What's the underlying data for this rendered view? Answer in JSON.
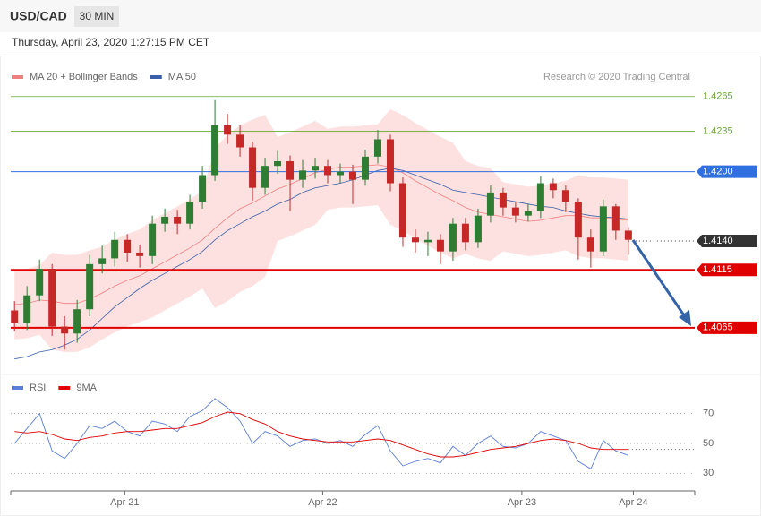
{
  "header": {
    "symbol": "USD/CAD",
    "timeframe": "30 MIN",
    "datetime": "Thursday, April 23, 2020 1:27:15 PM CET"
  },
  "chart_data": [
    {
      "type": "candlestick",
      "source": "Research © 2020 Trading Central",
      "up_color": "#2e7d32",
      "down_color": "#c62828",
      "ylim": [
        1.403,
        1.4271
      ],
      "open": [
        1.408,
        1.4069,
        1.4093,
        1.4116,
        1.4066,
        1.406,
        1.4081,
        1.412,
        1.4125,
        1.4141,
        1.413,
        1.4127,
        1.4155,
        1.4161,
        1.4155,
        1.4174,
        1.4197,
        1.424,
        1.4232,
        1.4221,
        1.4186,
        1.4205,
        1.4209,
        1.4193,
        1.4201,
        1.4205,
        1.4197,
        1.42,
        1.4193,
        1.4213,
        1.4228,
        1.419,
        1.4143,
        1.4139,
        1.4141,
        1.4131,
        1.4155,
        1.4139,
        1.4162,
        1.4182,
        1.4169,
        1.4162,
        1.4166,
        1.419,
        1.4184,
        1.4174,
        1.4143,
        1.4131,
        1.417,
        1.4149
      ],
      "high": [
        1.4088,
        1.4101,
        1.4124,
        1.412,
        1.4075,
        1.4089,
        1.4128,
        1.4136,
        1.4148,
        1.4146,
        1.4137,
        1.4162,
        1.4168,
        1.4167,
        1.418,
        1.4205,
        1.4262,
        1.425,
        1.424,
        1.4226,
        1.4212,
        1.4218,
        1.4214,
        1.421,
        1.4212,
        1.421,
        1.4207,
        1.4206,
        1.4219,
        1.4236,
        1.4232,
        1.4195,
        1.415,
        1.4148,
        1.4146,
        1.416,
        1.416,
        1.4168,
        1.4188,
        1.4186,
        1.4174,
        1.4172,
        1.4196,
        1.4194,
        1.4188,
        1.4177,
        1.415,
        1.4176,
        1.4172,
        1.4152
      ],
      "low": [
        1.4062,
        1.4063,
        1.4088,
        1.4058,
        1.4046,
        1.4052,
        1.4075,
        1.4112,
        1.4118,
        1.4122,
        1.4117,
        1.412,
        1.4148,
        1.4146,
        1.415,
        1.4168,
        1.4192,
        1.4224,
        1.4213,
        1.4175,
        1.418,
        1.4198,
        1.4166,
        1.4186,
        1.4194,
        1.419,
        1.419,
        1.4172,
        1.4188,
        1.4207,
        1.4183,
        1.4135,
        1.413,
        1.4127,
        1.412,
        1.4123,
        1.4132,
        1.4134,
        1.4156,
        1.4162,
        1.4156,
        1.4157,
        1.416,
        1.4177,
        1.4165,
        1.4124,
        1.4117,
        1.4127,
        1.4141,
        1.4128
      ],
      "close": [
        1.4069,
        1.4093,
        1.4116,
        1.4066,
        1.406,
        1.4081,
        1.412,
        1.4125,
        1.4141,
        1.413,
        1.4127,
        1.4155,
        1.4161,
        1.4155,
        1.4174,
        1.4197,
        1.424,
        1.4232,
        1.4221,
        1.4186,
        1.4205,
        1.4209,
        1.4193,
        1.4201,
        1.4205,
        1.4197,
        1.42,
        1.4193,
        1.4213,
        1.4228,
        1.419,
        1.4143,
        1.4139,
        1.4141,
        1.4131,
        1.4155,
        1.4139,
        1.4162,
        1.4182,
        1.4169,
        1.4162,
        1.4166,
        1.419,
        1.4184,
        1.4174,
        1.4143,
        1.4131,
        1.417,
        1.4149,
        1.4141
      ],
      "series": [
        {
          "name": "MA 20 + Bollinger Bands",
          "color": "#f08080",
          "values": [
            1.4085,
            1.4086,
            1.4089,
            1.4088,
            1.4086,
            1.4086,
            1.409,
            1.4095,
            1.4101,
            1.4106,
            1.411,
            1.4116,
            1.4122,
            1.4128,
            1.4134,
            1.4141,
            1.4151,
            1.416,
            1.4168,
            1.4173,
            1.4179,
            1.4185,
            1.4189,
            1.4194,
            1.4199,
            1.4202,
            1.4204,
            1.4204,
            1.4205,
            1.4206,
            1.4204,
            1.4199,
            1.4192,
            1.4186,
            1.418,
            1.4175,
            1.4169,
            1.4165,
            1.4163,
            1.4161,
            1.4159,
            1.4157,
            1.4158,
            1.416,
            1.4162,
            1.4162,
            1.416,
            1.416,
            1.4159,
            1.4158
          ],
          "upper": [
            1.4115,
            1.4116,
            1.4119,
            1.413,
            1.4128,
            1.4128,
            1.4132,
            1.4135,
            1.4141,
            1.4146,
            1.415,
            1.4158,
            1.4164,
            1.417,
            1.4176,
            1.4183,
            1.422,
            1.4232,
            1.424,
            1.4245,
            1.4249,
            1.423,
            1.4234,
            1.4239,
            1.4244,
            1.4237,
            1.4239,
            1.4239,
            1.424,
            1.4241,
            1.4254,
            1.4249,
            1.4242,
            1.4236,
            1.423,
            1.4225,
            1.4209,
            1.4205,
            1.4203,
            1.4191,
            1.4189,
            1.4187,
            1.4188,
            1.419,
            1.4192,
            1.4197,
            1.4195,
            1.4195,
            1.4194,
            1.4193
          ],
          "lower": [
            1.4055,
            1.4056,
            1.4059,
            1.4046,
            1.4044,
            1.4044,
            1.4048,
            1.4055,
            1.4061,
            1.4066,
            1.407,
            1.4074,
            1.408,
            1.4086,
            1.4092,
            1.4099,
            1.4082,
            1.4088,
            1.4096,
            1.4101,
            1.4109,
            1.414,
            1.4144,
            1.4149,
            1.4154,
            1.4167,
            1.4169,
            1.4169,
            1.417,
            1.4171,
            1.4154,
            1.4149,
            1.4142,
            1.4136,
            1.413,
            1.4125,
            1.4129,
            1.4125,
            1.4123,
            1.4131,
            1.4129,
            1.4127,
            1.4128,
            1.413,
            1.4132,
            1.4127,
            1.4125,
            1.4125,
            1.4124,
            1.4123
          ]
        },
        {
          "name": "MA 50",
          "color": "#3a5fa8",
          "values": [
            1.4038,
            1.404,
            1.4044,
            1.4046,
            1.405,
            1.4055,
            1.4063,
            1.4073,
            1.4083,
            1.4091,
            1.4099,
            1.4106,
            1.4112,
            1.4118,
            1.4124,
            1.4131,
            1.4141,
            1.4149,
            1.4155,
            1.4161,
            1.4166,
            1.4172,
            1.4176,
            1.4182,
            1.4186,
            1.4188,
            1.419,
            1.4193,
            1.4197,
            1.4201,
            1.4203,
            1.4201,
            1.4197,
            1.4193,
            1.4189,
            1.4184,
            1.4182,
            1.418,
            1.4178,
            1.4176,
            1.4174,
            1.4172,
            1.417,
            1.4169,
            1.4166,
            1.4164,
            1.4162,
            1.4161,
            1.416,
            1.4159
          ]
        }
      ],
      "levels": [
        {
          "value": 1.4265,
          "color": "#6aa832",
          "line": "solid",
          "line_width": 0.8,
          "label_style": "plain"
        },
        {
          "value": 1.4235,
          "color": "#6aa832",
          "line": "solid",
          "line_width": 0.8,
          "label_style": "plain"
        },
        {
          "value": {
            "value": 1.42,
            "label": "1.4200"
          },
          "color": "#2f6fe0",
          "line": "solid",
          "line_width": 1,
          "label_style": "box"
        },
        {
          "value": {
            "value": 1.414,
            "label": "1.4140"
          },
          "color": "#333333",
          "line": "dotted",
          "line_width": 1,
          "label_style": "box"
        },
        {
          "value": 1.4115,
          "color": "#e00000",
          "line": "solid",
          "line_width": 2,
          "label_style": "box"
        },
        {
          "value": 1.4065,
          "color": "#e00000",
          "line": "solid",
          "line_width": 2,
          "label_style": "box"
        }
      ]
    },
    {
      "type": "line",
      "ylim": [
        23,
        83
      ],
      "yticks": [
        30,
        50,
        70
      ],
      "grid": true,
      "xlim": [
        -0.3,
        54.3
      ],
      "xticks": [
        {
          "value": 8.8,
          "label": "Apr 21"
        },
        {
          "value": 24.6,
          "label": "Apr 22"
        },
        {
          "value": 40.5,
          "label": "Apr 23"
        },
        {
          "value": 49.4,
          "label": "Apr 24"
        }
      ],
      "series": [
        {
          "name": "RSI",
          "color": "#5b7fd6",
          "values": [
            50,
            60,
            70,
            45,
            40,
            50,
            62,
            60,
            65,
            58,
            55,
            65,
            63,
            58,
            68,
            72,
            80,
            74,
            65,
            50,
            58,
            55,
            48,
            52,
            53,
            50,
            52,
            48,
            56,
            62,
            45,
            35,
            38,
            40,
            37,
            48,
            42,
            50,
            55,
            48,
            47,
            50,
            58,
            55,
            52,
            38,
            33,
            52,
            45,
            42
          ]
        },
        {
          "name": "9MA",
          "color": "#e00000",
          "values": [
            58,
            57,
            58,
            56,
            53,
            52,
            54,
            55,
            57,
            58,
            58,
            59,
            60,
            60,
            62,
            64,
            68,
            71,
            70,
            66,
            63,
            58,
            55,
            53,
            52,
            51,
            51,
            51,
            52,
            53,
            52,
            49,
            46,
            43,
            41,
            41,
            42,
            44,
            46,
            47,
            48,
            50,
            52,
            53,
            52,
            50,
            47,
            46,
            46,
            46
          ]
        }
      ]
    }
  ]
}
